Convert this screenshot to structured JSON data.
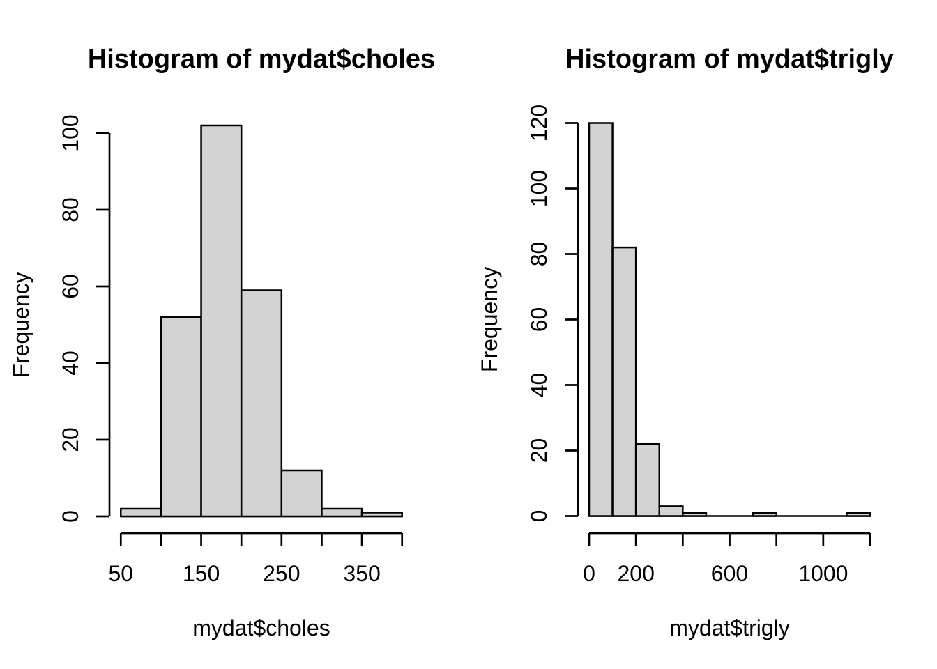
{
  "figure": {
    "background": "#ffffff",
    "text_color": "#000000"
  },
  "chart_data": [
    {
      "type": "bar",
      "kind": "histogram",
      "title": "Histogram of mydat$choles",
      "xlabel": "mydat$choles",
      "ylabel": "Frequency",
      "breaks": [
        50,
        100,
        150,
        200,
        250,
        300,
        350,
        400
      ],
      "counts": [
        2,
        52,
        102,
        59,
        12,
        2,
        1
      ],
      "x_ticks": [
        50,
        100,
        150,
        200,
        250,
        300,
        350,
        400
      ],
      "x_tick_labels": [
        "50",
        "",
        "150",
        "",
        "250",
        "",
        "350",
        ""
      ],
      "y_ticks": [
        0,
        20,
        40,
        60,
        80,
        100
      ],
      "y_tick_labels": [
        "0",
        "20",
        "40",
        "60",
        "80",
        "100"
      ],
      "xlim": [
        50,
        400
      ],
      "ylim": [
        0,
        100
      ],
      "grid": false,
      "legend": "none",
      "bar_fill": "#d3d3d3",
      "bar_stroke": "#000000",
      "axis_color": "#000000"
    },
    {
      "type": "bar",
      "kind": "histogram",
      "title": "Histogram of mydat$trigly",
      "xlabel": "mydat$trigly",
      "ylabel": "Frequency",
      "breaks": [
        0,
        100,
        200,
        300,
        400,
        500,
        600,
        700,
        800,
        900,
        1000,
        1100,
        1200
      ],
      "counts": [
        120,
        82,
        22,
        3,
        1,
        0,
        0,
        1,
        0,
        0,
        0,
        1
      ],
      "x_ticks": [
        0,
        200,
        400,
        600,
        800,
        1000,
        1200
      ],
      "x_tick_labels": [
        "0",
        "200",
        "",
        "600",
        "",
        "1000",
        ""
      ],
      "y_ticks": [
        0,
        20,
        40,
        60,
        80,
        100,
        120
      ],
      "y_tick_labels": [
        "0",
        "20",
        "40",
        "60",
        "80",
        "100",
        "120"
      ],
      "xlim": [
        0,
        1200
      ],
      "ylim": [
        0,
        120
      ],
      "grid": false,
      "legend": "none",
      "bar_fill": "#d3d3d3",
      "bar_stroke": "#000000",
      "axis_color": "#000000"
    }
  ]
}
